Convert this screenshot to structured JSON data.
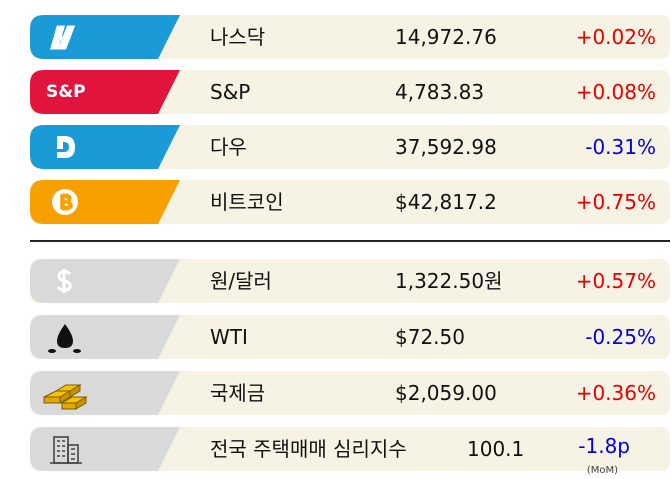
{
  "indices": [
    {
      "name": "나스닥",
      "value": "14,972.76",
      "change": "+0.02%"
    },
    {
      "badge": "S&P",
      "name": "S&P",
      "value": "4,783.83",
      "change": "+0.08%"
    },
    {
      "name": "다우",
      "value": "37,592.98",
      "change": "-0.31%"
    },
    {
      "name": "비트코인",
      "value": "$42,817.2",
      "change": "+0.75%"
    }
  ],
  "macro": [
    {
      "name": "원/달러",
      "value": "1,322.50원",
      "change": "+0.57%"
    },
    {
      "name": "WTI",
      "value": "$72.50",
      "change": "-0.25%"
    },
    {
      "name": "국제금",
      "value": "$2,059.00",
      "change": "+0.36%"
    },
    {
      "name": "전국 주택매매 심리지수",
      "value": "100.1",
      "change": "-1.8p",
      "note": "(MoM)"
    }
  ]
}
